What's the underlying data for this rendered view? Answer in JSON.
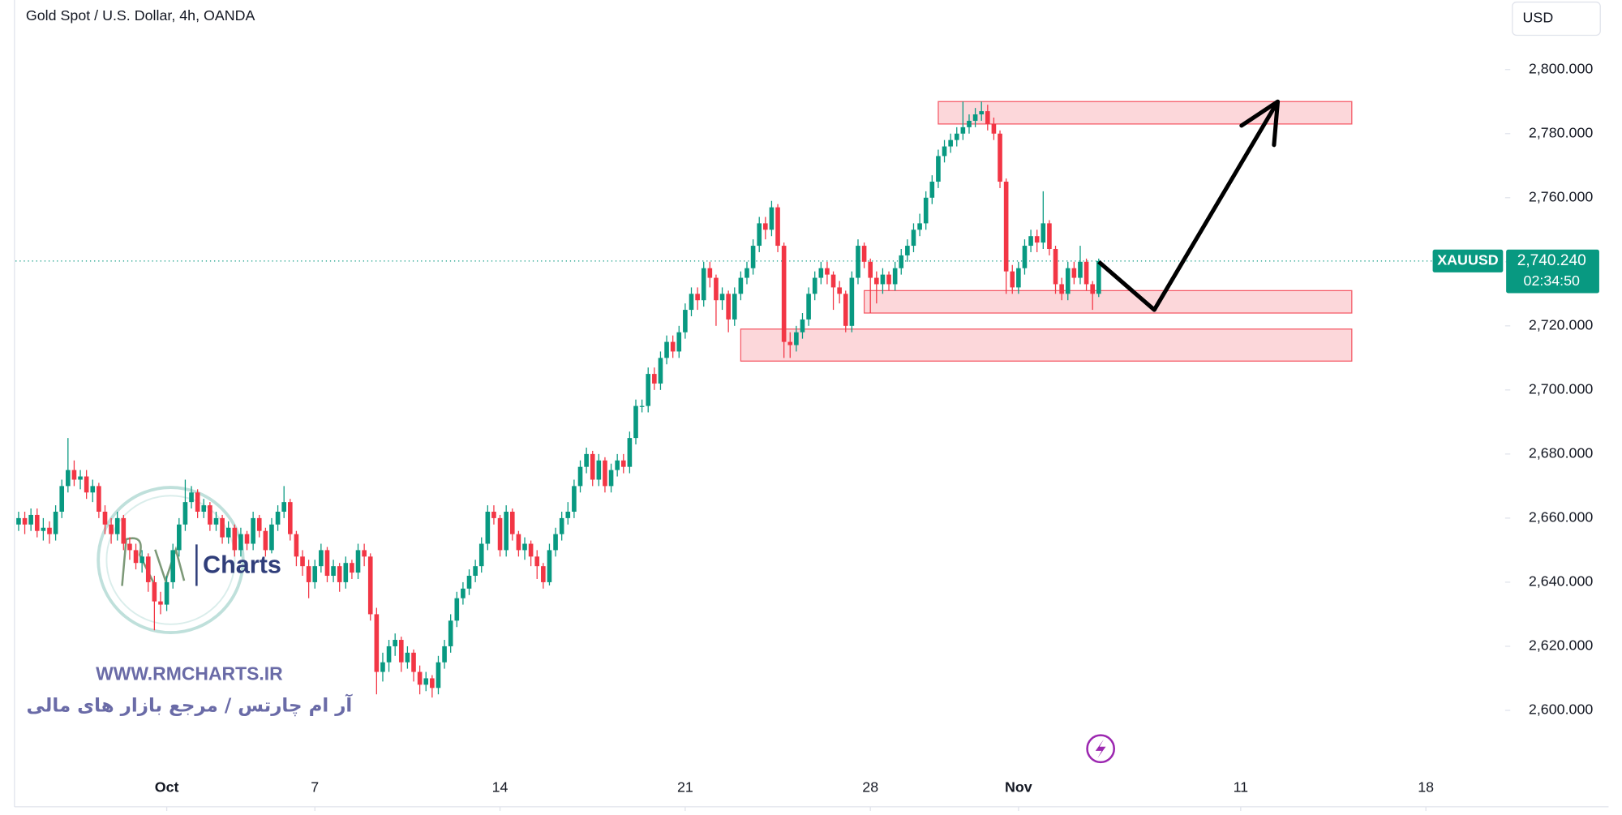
{
  "chart_data": {
    "type": "candlestick",
    "title": "Gold Spot / U.S. Dollar, 4h, OANDA",
    "currency": "USD",
    "series": [
      {
        "name": "XAUUSD",
        "up_color": "#089981",
        "down_color": "#f23645",
        "ohlc": [
          [
            2658,
            2662,
            2656,
            2660
          ],
          [
            2660,
            2662,
            2655,
            2658
          ],
          [
            2658,
            2663,
            2656,
            2661
          ],
          [
            2661,
            2663,
            2654,
            2656
          ],
          [
            2656,
            2660,
            2653,
            2657
          ],
          [
            2657,
            2659,
            2652,
            2655
          ],
          [
            2655,
            2664,
            2653,
            2662
          ],
          [
            2662,
            2672,
            2660,
            2670
          ],
          [
            2670,
            2685,
            2668,
            2675
          ],
          [
            2675,
            2678,
            2670,
            2672
          ],
          [
            2672,
            2675,
            2669,
            2673
          ],
          [
            2673,
            2675,
            2666,
            2668
          ],
          [
            2668,
            2672,
            2665,
            2670
          ],
          [
            2670,
            2671,
            2660,
            2662
          ],
          [
            2662,
            2664,
            2655,
            2658
          ],
          [
            2658,
            2660,
            2652,
            2655
          ],
          [
            2655,
            2662,
            2653,
            2660
          ],
          [
            2660,
            2661,
            2650,
            2652
          ],
          [
            2652,
            2654,
            2647,
            2650
          ],
          [
            2650,
            2652,
            2644,
            2646
          ],
          [
            2646,
            2650,
            2643,
            2648
          ],
          [
            2648,
            2649,
            2637,
            2640
          ],
          [
            2640,
            2642,
            2625,
            2634
          ],
          [
            2634,
            2637,
            2630,
            2633
          ],
          [
            2633,
            2642,
            2631,
            2640
          ],
          [
            2640,
            2652,
            2638,
            2650
          ],
          [
            2650,
            2660,
            2648,
            2658
          ],
          [
            2658,
            2672,
            2656,
            2665
          ],
          [
            2665,
            2670,
            2663,
            2668
          ],
          [
            2668,
            2669,
            2660,
            2662
          ],
          [
            2662,
            2666,
            2660,
            2664
          ],
          [
            2664,
            2665,
            2656,
            2658
          ],
          [
            2658,
            2662,
            2656,
            2660
          ],
          [
            2660,
            2661,
            2652,
            2654
          ],
          [
            2654,
            2659,
            2652,
            2657
          ],
          [
            2657,
            2658,
            2648,
            2650
          ],
          [
            2650,
            2657,
            2648,
            2655
          ],
          [
            2655,
            2656,
            2650,
            2652
          ],
          [
            2652,
            2662,
            2650,
            2660
          ],
          [
            2660,
            2661,
            2654,
            2656
          ],
          [
            2656,
            2657,
            2648,
            2650
          ],
          [
            2650,
            2660,
            2649,
            2658
          ],
          [
            2658,
            2664,
            2656,
            2662
          ],
          [
            2662,
            2670,
            2660,
            2665
          ],
          [
            2665,
            2666,
            2653,
            2655
          ],
          [
            2655,
            2656,
            2645,
            2648
          ],
          [
            2648,
            2650,
            2642,
            2645
          ],
          [
            2645,
            2647,
            2635,
            2640
          ],
          [
            2640,
            2647,
            2638,
            2645
          ],
          [
            2645,
            2652,
            2643,
            2650
          ],
          [
            2650,
            2651,
            2640,
            2642
          ],
          [
            2642,
            2647,
            2640,
            2645
          ],
          [
            2645,
            2646,
            2637,
            2640
          ],
          [
            2640,
            2648,
            2638,
            2646
          ],
          [
            2646,
            2647,
            2641,
            2643
          ],
          [
            2643,
            2652,
            2641,
            2650
          ],
          [
            2650,
            2652,
            2645,
            2648
          ],
          [
            2648,
            2649,
            2628,
            2630
          ],
          [
            2630,
            2632,
            2605,
            2612
          ],
          [
            2612,
            2618,
            2609,
            2615
          ],
          [
            2615,
            2622,
            2612,
            2620
          ],
          [
            2620,
            2624,
            2617,
            2622
          ],
          [
            2622,
            2623,
            2612,
            2615
          ],
          [
            2615,
            2620,
            2613,
            2618
          ],
          [
            2618,
            2619,
            2609,
            2612
          ],
          [
            2612,
            2614,
            2605,
            2608
          ],
          [
            2608,
            2612,
            2606,
            2610
          ],
          [
            2610,
            2611,
            2604,
            2607
          ],
          [
            2607,
            2617,
            2605,
            2615
          ],
          [
            2615,
            2622,
            2613,
            2620
          ],
          [
            2620,
            2630,
            2618,
            2628
          ],
          [
            2628,
            2637,
            2626,
            2635
          ],
          [
            2635,
            2640,
            2633,
            2638
          ],
          [
            2638,
            2644,
            2636,
            2642
          ],
          [
            2642,
            2647,
            2640,
            2645
          ],
          [
            2645,
            2654,
            2643,
            2652
          ],
          [
            2652,
            2664,
            2650,
            2662
          ],
          [
            2662,
            2664,
            2658,
            2660
          ],
          [
            2660,
            2661,
            2648,
            2650
          ],
          [
            2650,
            2664,
            2648,
            2662
          ],
          [
            2662,
            2663,
            2653,
            2655
          ],
          [
            2655,
            2656,
            2648,
            2650
          ],
          [
            2650,
            2654,
            2647,
            2652
          ],
          [
            2652,
            2653,
            2645,
            2648
          ],
          [
            2648,
            2650,
            2641,
            2645
          ],
          [
            2645,
            2646,
            2638,
            2640
          ],
          [
            2640,
            2652,
            2639,
            2650
          ],
          [
            2650,
            2657,
            2648,
            2655
          ],
          [
            2655,
            2662,
            2653,
            2660
          ],
          [
            2660,
            2665,
            2658,
            2662
          ],
          [
            2662,
            2672,
            2660,
            2670
          ],
          [
            2670,
            2678,
            2668,
            2676
          ],
          [
            2676,
            2682,
            2674,
            2680
          ],
          [
            2680,
            2681,
            2670,
            2672
          ],
          [
            2672,
            2680,
            2670,
            2678
          ],
          [
            2678,
            2679,
            2668,
            2670
          ],
          [
            2670,
            2677,
            2668,
            2675
          ],
          [
            2675,
            2680,
            2673,
            2678
          ],
          [
            2678,
            2680,
            2674,
            2676
          ],
          [
            2676,
            2687,
            2674,
            2685
          ],
          [
            2685,
            2697,
            2683,
            2695
          ],
          [
            2695,
            2697,
            2693,
            2695
          ],
          [
            2695,
            2707,
            2693,
            2705
          ],
          [
            2705,
            2707,
            2700,
            2702
          ],
          [
            2702,
            2712,
            2700,
            2710
          ],
          [
            2710,
            2717,
            2708,
            2715
          ],
          [
            2715,
            2717,
            2710,
            2712
          ],
          [
            2712,
            2720,
            2710,
            2718
          ],
          [
            2718,
            2727,
            2716,
            2725
          ],
          [
            2725,
            2732,
            2723,
            2730
          ],
          [
            2730,
            2732,
            2725,
            2728
          ],
          [
            2728,
            2740,
            2726,
            2738
          ],
          [
            2738,
            2740,
            2732,
            2735
          ],
          [
            2735,
            2736,
            2720,
            2728
          ],
          [
            2728,
            2732,
            2725,
            2730
          ],
          [
            2730,
            2731,
            2718,
            2722
          ],
          [
            2722,
            2732,
            2720,
            2730
          ],
          [
            2730,
            2737,
            2728,
            2735
          ],
          [
            2735,
            2740,
            2733,
            2738
          ],
          [
            2738,
            2747,
            2736,
            2745
          ],
          [
            2745,
            2754,
            2743,
            2752
          ],
          [
            2752,
            2754,
            2747,
            2750
          ],
          [
            2750,
            2759,
            2748,
            2757
          ],
          [
            2757,
            2758,
            2743,
            2745
          ],
          [
            2745,
            2746,
            2710,
            2715
          ],
          [
            2715,
            2718,
            2710,
            2714
          ],
          [
            2714,
            2720,
            2712,
            2718
          ],
          [
            2718,
            2724,
            2716,
            2722
          ],
          [
            2722,
            2732,
            2720,
            2730
          ],
          [
            2730,
            2737,
            2728,
            2735
          ],
          [
            2735,
            2740,
            2733,
            2738
          ],
          [
            2738,
            2740,
            2733,
            2736
          ],
          [
            2736,
            2737,
            2725,
            2732
          ],
          [
            2732,
            2734,
            2727,
            2730
          ],
          [
            2730,
            2731,
            2718,
            2720
          ],
          [
            2720,
            2737,
            2718,
            2735
          ],
          [
            2735,
            2747,
            2733,
            2745
          ],
          [
            2745,
            2746,
            2738,
            2740
          ],
          [
            2740,
            2741,
            2724,
            2735
          ],
          [
            2735,
            2737,
            2727,
            2733
          ],
          [
            2733,
            2738,
            2730,
            2736
          ],
          [
            2736,
            2737,
            2731,
            2733
          ],
          [
            2733,
            2740,
            2731,
            2738
          ],
          [
            2738,
            2744,
            2736,
            2742
          ],
          [
            2742,
            2747,
            2740,
            2745
          ],
          [
            2745,
            2752,
            2743,
            2750
          ],
          [
            2750,
            2755,
            2748,
            2752
          ],
          [
            2752,
            2762,
            2750,
            2760
          ],
          [
            2760,
            2767,
            2758,
            2765
          ],
          [
            2765,
            2775,
            2763,
            2773
          ],
          [
            2773,
            2778,
            2771,
            2776
          ],
          [
            2776,
            2780,
            2774,
            2778
          ],
          [
            2778,
            2782,
            2776,
            2780
          ],
          [
            2780,
            2790,
            2778,
            2782
          ],
          [
            2782,
            2786,
            2780,
            2784
          ],
          [
            2784,
            2788,
            2782,
            2786
          ],
          [
            2786,
            2790,
            2784,
            2787
          ],
          [
            2787,
            2789,
            2781,
            2783
          ],
          [
            2783,
            2785,
            2778,
            2780
          ],
          [
            2780,
            2781,
            2763,
            2765
          ],
          [
            2765,
            2766,
            2730,
            2737
          ],
          [
            2737,
            2739,
            2730,
            2732
          ],
          [
            2732,
            2740,
            2730,
            2738
          ],
          [
            2738,
            2747,
            2736,
            2745
          ],
          [
            2745,
            2750,
            2743,
            2748
          ],
          [
            2748,
            2750,
            2743,
            2746
          ],
          [
            2746,
            2762,
            2744,
            2752
          ],
          [
            2752,
            2753,
            2742,
            2744
          ],
          [
            2744,
            2745,
            2730,
            2733
          ],
          [
            2733,
            2735,
            2728,
            2730
          ],
          [
            2730,
            2740,
            2728,
            2738
          ],
          [
            2738,
            2740,
            2733,
            2735
          ],
          [
            2735,
            2745,
            2733,
            2740
          ],
          [
            2740,
            2741,
            2731,
            2733
          ],
          [
            2733,
            2734,
            2725,
            2730
          ],
          [
            2730,
            2741,
            2729,
            2740.24
          ]
        ]
      }
    ],
    "last": {
      "value": 2740.24,
      "label": "2,740.240"
    },
    "countdown": "02:34:50",
    "zones": [
      {
        "x": [
          149,
          216
        ],
        "y": [
          2790,
          2783
        ]
      },
      {
        "x": [
          137,
          216
        ],
        "y": [
          2731,
          2724
        ]
      },
      {
        "x": [
          117,
          216
        ],
        "y": [
          2719,
          2709
        ]
      }
    ],
    "zone_color": "#f23645",
    "arrow": {
      "x": [
        175,
        184,
        204
      ],
      "y": [
        2740,
        2725,
        2790
      ]
    },
    "xlim": [
      -0.5,
      240
    ],
    "ylim": [
      2582.2,
      2821.7
    ],
    "xticks": [
      {
        "value": 24,
        "label": "Oct"
      },
      {
        "value": 48,
        "label": "7"
      },
      {
        "value": 78,
        "label": "14"
      },
      {
        "value": 108,
        "label": "21"
      },
      {
        "value": 138,
        "label": "28"
      },
      {
        "value": 162,
        "label": "Nov"
      },
      {
        "value": 198,
        "label": "11"
      },
      {
        "value": 228,
        "label": "18"
      }
    ],
    "yticks": [
      {
        "value": 2600,
        "label": "2,600.000"
      },
      {
        "value": 2620,
        "label": "2,620.000"
      },
      {
        "value": 2640,
        "label": "2,640.000"
      },
      {
        "value": 2660,
        "label": "2,660.000"
      },
      {
        "value": 2680,
        "label": "2,680.000"
      },
      {
        "value": 2700,
        "label": "2,700.000"
      },
      {
        "value": 2720,
        "label": "2,720.000"
      },
      {
        "value": 2740,
        "label": "2,740.000"
      },
      {
        "value": 2760,
        "label": "2,760.000"
      },
      {
        "value": 2780,
        "label": "2,780.000"
      },
      {
        "value": 2800,
        "label": "2,800.000"
      }
    ],
    "grid": false
  },
  "watermark": {
    "logo": "Charts",
    "url": "WWW.RMCHARTS.IR",
    "tagline": "آر ام چارتس / مرجع بازار های مالی"
  }
}
